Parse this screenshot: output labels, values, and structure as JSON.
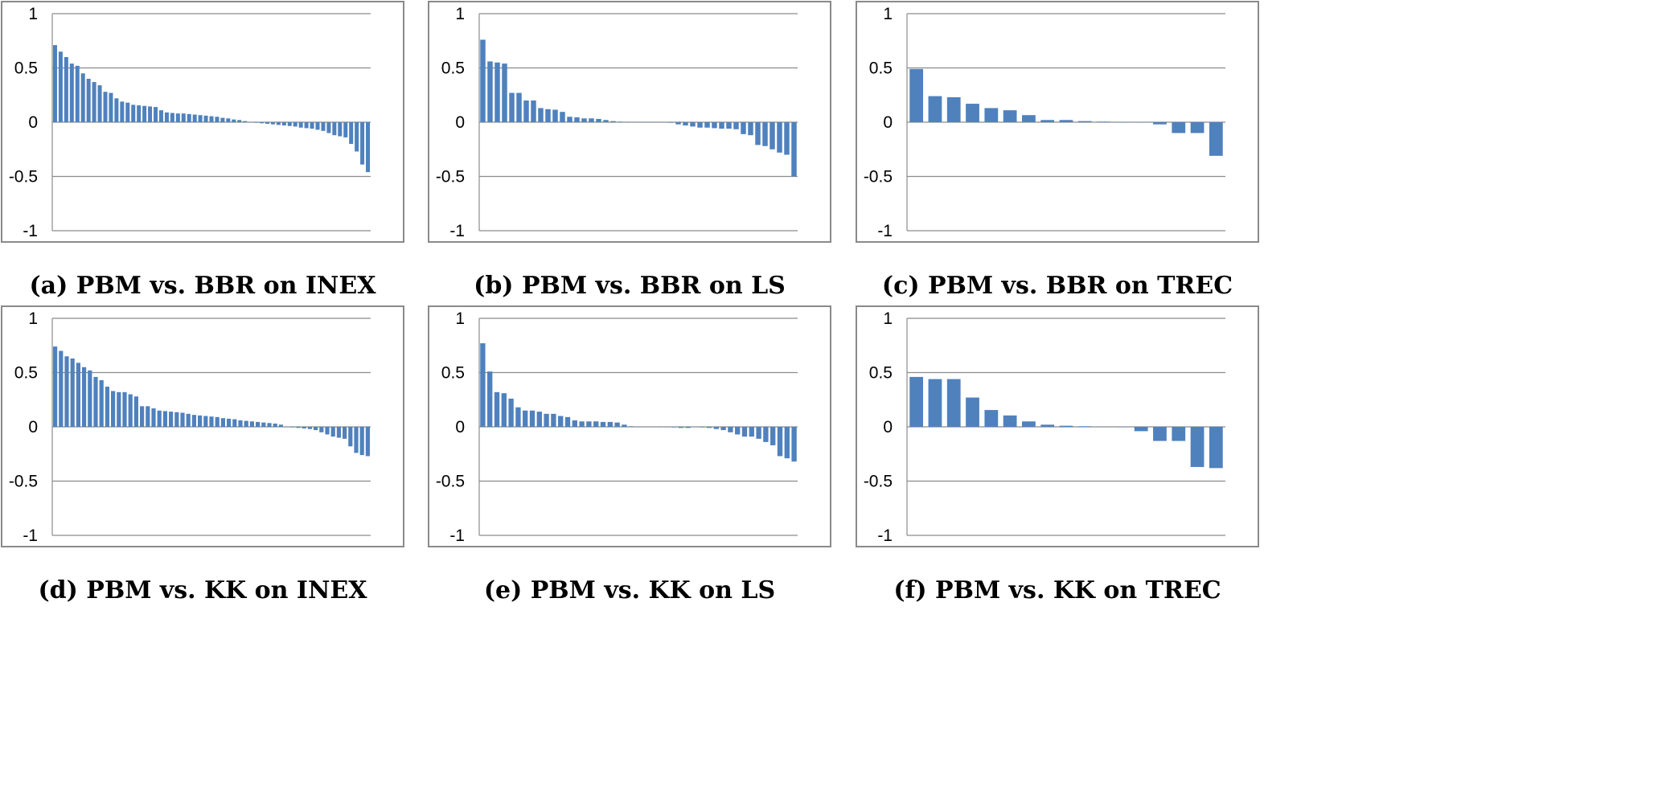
{
  "colors": {
    "bar": "#4f81bd",
    "grid": "#8c8c8c"
  },
  "chart_data": [
    {
      "type": "bar",
      "title": "(a) PBM vs. BBR on INEX",
      "ylim": [
        -1,
        1
      ],
      "yticks": [
        "1",
        "0.5",
        "0",
        "-0.5",
        "-1"
      ],
      "grid": true,
      "values": [
        0.71,
        0.65,
        0.6,
        0.54,
        0.52,
        0.45,
        0.4,
        0.37,
        0.34,
        0.28,
        0.27,
        0.22,
        0.19,
        0.18,
        0.16,
        0.155,
        0.15,
        0.145,
        0.14,
        0.11,
        0.09,
        0.085,
        0.08,
        0.08,
        0.075,
        0.07,
        0.065,
        0.06,
        0.055,
        0.05,
        0.04,
        0.035,
        0.025,
        0.02,
        0.01,
        0.0,
        -0.005,
        -0.01,
        -0.015,
        -0.02,
        -0.025,
        -0.03,
        -0.035,
        -0.04,
        -0.05,
        -0.055,
        -0.06,
        -0.07,
        -0.08,
        -0.1,
        -0.12,
        -0.13,
        -0.14,
        -0.2,
        -0.27,
        -0.39,
        -0.46
      ]
    },
    {
      "type": "bar",
      "title": "(b) PBM vs. BBR on LS",
      "ylim": [
        -1,
        1
      ],
      "yticks": [
        "1",
        "0.5",
        "0",
        "-0.5",
        "-1"
      ],
      "grid": true,
      "values": [
        0.76,
        0.56,
        0.55,
        0.54,
        0.27,
        0.27,
        0.2,
        0.2,
        0.13,
        0.12,
        0.115,
        0.095,
        0.05,
        0.045,
        0.035,
        0.035,
        0.03,
        0.02,
        0.01,
        0.005,
        0.002,
        0.0,
        0.0,
        0.0,
        0.0,
        0.0,
        -0.005,
        -0.02,
        -0.03,
        -0.04,
        -0.05,
        -0.05,
        -0.055,
        -0.06,
        -0.06,
        -0.065,
        -0.11,
        -0.12,
        -0.21,
        -0.22,
        -0.25,
        -0.28,
        -0.3,
        -0.5
      ]
    },
    {
      "type": "bar",
      "title": "(c) PBM vs. BBR on TREC",
      "ylim": [
        -1,
        1
      ],
      "yticks": [
        "1",
        "0.5",
        "0",
        "-0.5",
        "-1"
      ],
      "grid": true,
      "values": [
        0.49,
        0.24,
        0.23,
        0.17,
        0.13,
        0.11,
        0.065,
        0.02,
        0.02,
        0.01,
        0.005,
        0.0,
        0.0,
        -0.02,
        -0.1,
        -0.1,
        -0.31
      ]
    },
    {
      "type": "bar",
      "title": "(d) PBM vs. KK on INEX",
      "ylim": [
        -1,
        1
      ],
      "yticks": [
        "1",
        "0.5",
        "0",
        "-0.5",
        "-1"
      ],
      "grid": true,
      "values": [
        0.74,
        0.7,
        0.65,
        0.63,
        0.59,
        0.55,
        0.52,
        0.46,
        0.43,
        0.37,
        0.33,
        0.32,
        0.32,
        0.3,
        0.28,
        0.19,
        0.19,
        0.17,
        0.15,
        0.145,
        0.14,
        0.135,
        0.13,
        0.12,
        0.11,
        0.105,
        0.1,
        0.095,
        0.09,
        0.08,
        0.075,
        0.07,
        0.06,
        0.055,
        0.05,
        0.045,
        0.04,
        0.035,
        0.03,
        0.02,
        0.0,
        -0.005,
        -0.01,
        -0.015,
        -0.02,
        -0.03,
        -0.05,
        -0.07,
        -0.09,
        -0.1,
        -0.11,
        -0.18,
        -0.24,
        -0.26,
        -0.27
      ]
    },
    {
      "type": "bar",
      "title": "(e) PBM vs. KK on LS",
      "ylim": [
        -1,
        1
      ],
      "yticks": [
        "1",
        "0.5",
        "0",
        "-0.5",
        "-1"
      ],
      "grid": true,
      "values": [
        0.77,
        0.51,
        0.32,
        0.31,
        0.26,
        0.18,
        0.15,
        0.15,
        0.14,
        0.12,
        0.12,
        0.1,
        0.09,
        0.06,
        0.05,
        0.05,
        0.05,
        0.045,
        0.045,
        0.04,
        0.02,
        0.005,
        0.0,
        0.0,
        0.0,
        0.0,
        0.0,
        -0.005,
        -0.01,
        -0.01,
        0.0,
        -0.005,
        -0.01,
        -0.02,
        -0.03,
        -0.05,
        -0.07,
        -0.09,
        -0.09,
        -0.11,
        -0.14,
        -0.17,
        -0.27,
        -0.29,
        -0.32
      ]
    },
    {
      "type": "bar",
      "title": "(f) PBM vs. KK on TREC",
      "ylim": [
        -1,
        1
      ],
      "yticks": [
        "1",
        "0.5",
        "0",
        "-0.5",
        "-1"
      ],
      "grid": true,
      "values": [
        0.46,
        0.44,
        0.44,
        0.27,
        0.155,
        0.105,
        0.05,
        0.02,
        0.01,
        0.005,
        0.0,
        0.0,
        -0.04,
        -0.13,
        -0.13,
        -0.37,
        -0.38
      ]
    }
  ]
}
